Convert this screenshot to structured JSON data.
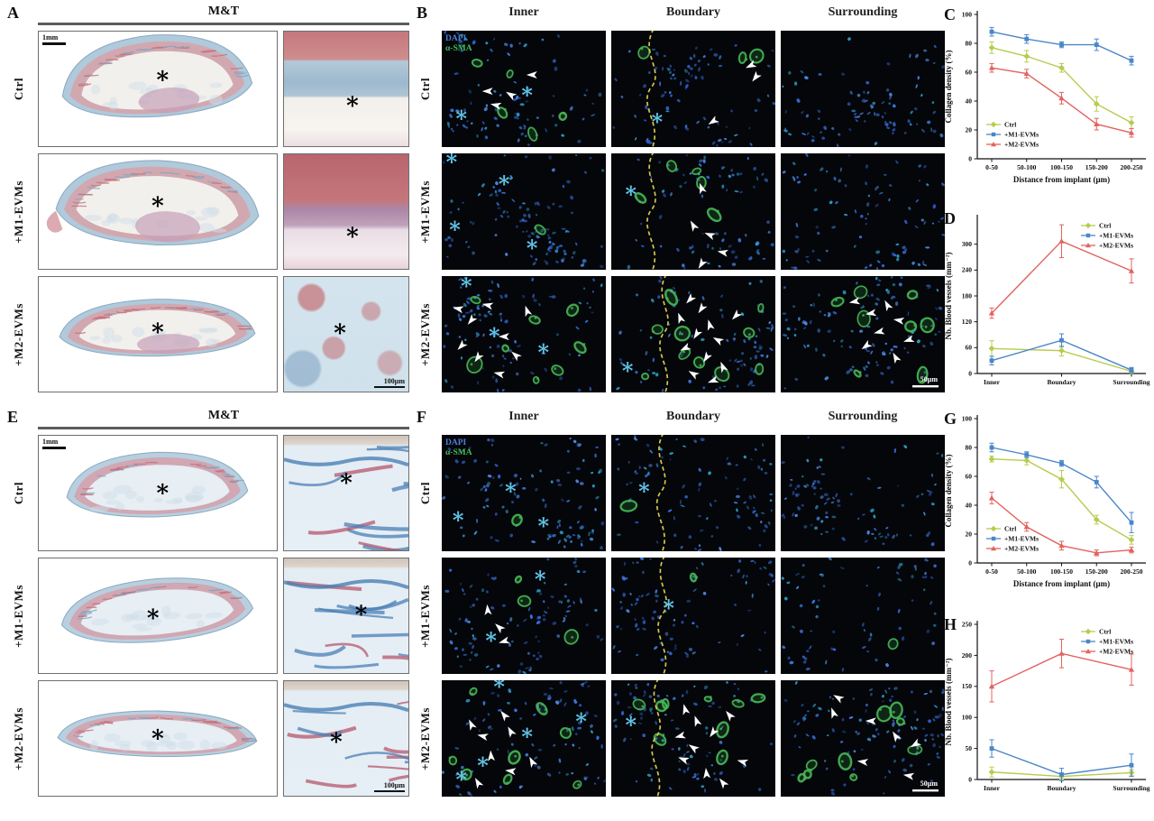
{
  "panels": {
    "A": {
      "letter": "A",
      "header": "M&T",
      "rows": [
        "Ctrl",
        "+M1-EVMs",
        "+M2-EVMs"
      ],
      "scale_bar_low": "1mm",
      "scale_bar_high": "100μm",
      "asterisk": "*"
    },
    "B": {
      "letter": "B",
      "columns": [
        "Inner",
        "Boundary",
        "Surrounding"
      ],
      "rows": [
        "Ctrl",
        "+M1-EVMs",
        "+M2-EVMs"
      ],
      "stain_labels": {
        "dapi": "DAPI",
        "asma": "α-SMA"
      },
      "scale_bar": "50μm",
      "asterisk": "*"
    },
    "E": {
      "letter": "E",
      "header": "M&T",
      "rows": [
        "Ctrl",
        "+M1-EVMs",
        "+M2-EVMs"
      ],
      "scale_bar_low": "1mm",
      "scale_bar_high": "100μm",
      "asterisk": "*"
    },
    "F": {
      "letter": "F",
      "columns": [
        "Inner",
        "Boundary",
        "Surrounding"
      ],
      "rows": [
        "Ctrl",
        "+M1-EVMs",
        "+M2-EVMs"
      ],
      "stain_labels": {
        "dapi": "DAPI",
        "asma": "α-SMA"
      },
      "scale_bar": "50μm",
      "asterisk": "*"
    }
  },
  "series_style": [
    {
      "name": "Ctrl",
      "color": "#b5cc4d",
      "marker": "diamond"
    },
    {
      "name": "+M1-EVMs",
      "color": "#4a86c8",
      "marker": "square"
    },
    {
      "name": "+M2-EVMs",
      "color": "#e2635f",
      "marker": "triangle"
    }
  ],
  "chart_data": [
    {
      "id": "C",
      "type": "line",
      "categories": [
        "0-50",
        "50-100",
        "100-150",
        "150-200",
        "200-250"
      ],
      "series": [
        {
          "name": "Ctrl",
          "values": [
            77,
            71,
            63,
            38,
            25
          ],
          "errors": [
            4,
            4,
            3,
            5,
            4
          ]
        },
        {
          "name": "+M1-EVMs",
          "values": [
            88,
            83,
            79,
            79,
            68
          ],
          "errors": [
            3,
            3,
            2,
            4,
            3
          ]
        },
        {
          "name": "+M2-EVMs",
          "values": [
            63,
            59,
            42,
            24,
            18
          ],
          "errors": [
            3,
            3,
            4,
            4,
            3
          ]
        }
      ],
      "xlabel": "Distance from implant (μm)",
      "ylabel": "Collagen density (%)",
      "ylim": [
        0,
        100
      ],
      "yticks": [
        0,
        20,
        40,
        60,
        80,
        100
      ],
      "legend_pos": "bottom-left",
      "grid": false
    },
    {
      "id": "D",
      "type": "line",
      "categories": [
        "Inner",
        "Boundary",
        "Surrounding"
      ],
      "series": [
        {
          "name": "Ctrl",
          "values": [
            58,
            53,
            5
          ],
          "errors": [
            18,
            12,
            4
          ]
        },
        {
          "name": "+M1-EVMs",
          "values": [
            30,
            77,
            8
          ],
          "errors": [
            10,
            15,
            6
          ]
        },
        {
          "name": "+M2-EVMs",
          "values": [
            140,
            307,
            238
          ],
          "errors": [
            12,
            38,
            28
          ]
        }
      ],
      "xlabel": "",
      "ylabel": "Nb. Blood vessels (mm⁻²)",
      "ylim": [
        0,
        360
      ],
      "yticks": [
        0,
        60,
        120,
        180,
        240,
        300
      ],
      "legend_pos": "top-right",
      "grid": false
    },
    {
      "id": "G",
      "type": "line",
      "categories": [
        "0-50",
        "50-100",
        "100-150",
        "150-200",
        "200-250"
      ],
      "series": [
        {
          "name": "Ctrl",
          "values": [
            72,
            71,
            58,
            30,
            16
          ],
          "errors": [
            2,
            3,
            6,
            3,
            3
          ]
        },
        {
          "name": "+M1-EVMs",
          "values": [
            80,
            75,
            69,
            56,
            28
          ],
          "errors": [
            3,
            2,
            2,
            4,
            7
          ]
        },
        {
          "name": "+M2-EVMs",
          "values": [
            45,
            25,
            12,
            7,
            9
          ],
          "errors": [
            4,
            3,
            3,
            2,
            2
          ]
        }
      ],
      "xlabel": "Distance from implant (μm)",
      "ylabel": "Collagen density (%)",
      "ylim": [
        0,
        100
      ],
      "yticks": [
        0,
        20,
        40,
        60,
        80,
        100
      ],
      "legend_pos": "bottom-left",
      "grid": false
    },
    {
      "id": "H",
      "type": "line",
      "categories": [
        "Inner",
        "Boundary",
        "Surrounding"
      ],
      "series": [
        {
          "name": "Ctrl",
          "values": [
            12,
            5,
            11
          ],
          "errors": [
            8,
            5,
            5
          ]
        },
        {
          "name": "+M1-EVMs",
          "values": [
            50,
            8,
            23
          ],
          "errors": [
            14,
            10,
            18
          ]
        },
        {
          "name": "+M2-EVMs",
          "values": [
            150,
            203,
            177
          ],
          "errors": [
            25,
            23,
            25
          ]
        }
      ],
      "xlabel": "",
      "ylabel": "Nb. Blood vessels (mm⁻²)",
      "ylim": [
        0,
        250
      ],
      "yticks": [
        0,
        50,
        100,
        150,
        200,
        250
      ],
      "legend_pos": "top-right",
      "grid": false
    }
  ],
  "colors": {
    "dapi_blue": "#4d7fd8",
    "asma_green": "#49b957",
    "asterisk_cyan": "#62c4e8",
    "boundary_dash_yellow": "#d6c64b",
    "arrowhead_white": "#ffffff"
  }
}
